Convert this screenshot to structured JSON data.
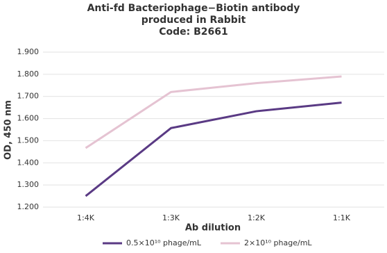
{
  "chart_data": {
    "type": "line",
    "title": [
      "Anti-fd Bacteriophage−Biotin antibody",
      "produced in Rabbit",
      "Code: B2661"
    ],
    "x_label": "Ab dilution",
    "y_label": "OD, 450 nm",
    "categories": [
      "1:4K",
      "1:3K",
      "1:2K",
      "1:1K"
    ],
    "series": [
      {
        "name": "0.5×10¹⁰ phage/mL",
        "color": "#5a3a84",
        "values": [
          1.25,
          1.557,
          1.633,
          1.672
        ]
      },
      {
        "name": "2×10¹⁰ phage/mL",
        "color": "#e5c3d2",
        "values": [
          1.467,
          1.72,
          1.76,
          1.79
        ]
      }
    ],
    "ylim": [
      1.2,
      1.9
    ],
    "yticks": [
      {
        "value": 1.2,
        "label": "1.200"
      },
      {
        "value": 1.3,
        "label": "1.300"
      },
      {
        "value": 1.4,
        "label": "1.400"
      },
      {
        "value": 1.5,
        "label": "1.500"
      },
      {
        "value": 1.6,
        "label": "1.600"
      },
      {
        "value": 1.7,
        "label": "1.700"
      },
      {
        "value": 1.8,
        "label": "1.800"
      },
      {
        "value": 1.9,
        "label": "1.900"
      }
    ],
    "grid": true
  }
}
